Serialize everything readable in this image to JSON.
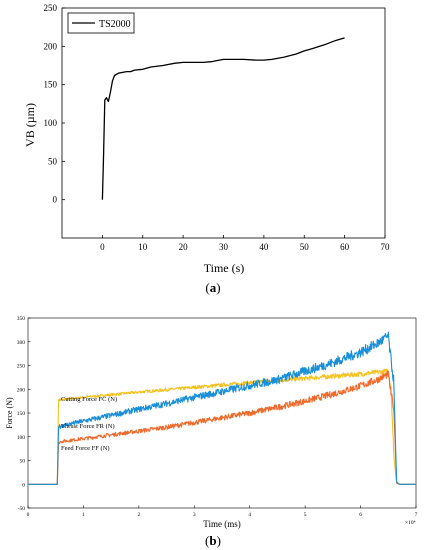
{
  "figure": {
    "panel_a_caption": {
      "open": "(",
      "letter": "a",
      "close": ")"
    },
    "panel_b_caption": {
      "open": "(",
      "letter": "b",
      "close": ")"
    }
  },
  "chart_data": [
    {
      "type": "line",
      "xlabel": "Time (s)",
      "ylabel": "VB (µm)",
      "xlim": [
        -10,
        70
      ],
      "ylim": [
        -50,
        250
      ],
      "xticks": [
        0,
        10,
        20,
        30,
        40,
        50,
        60,
        70
      ],
      "yticks": [
        0,
        50,
        100,
        150,
        200,
        250
      ],
      "grid": false,
      "legend": {
        "position": "top-left",
        "boxed": true
      },
      "series": [
        {
          "name": "TS2000",
          "color": "#000000",
          "x": [
            0,
            0.3,
            0.6,
            1,
            1.5,
            2,
            2.5,
            3,
            4,
            5,
            6,
            7,
            8,
            10,
            12,
            15,
            18,
            20,
            22,
            25,
            27,
            28,
            30,
            32,
            35,
            38,
            40,
            42,
            45,
            48,
            50,
            52,
            55,
            57,
            58,
            60
          ],
          "y": [
            0,
            60,
            130,
            133,
            128,
            140,
            155,
            162,
            165,
            166,
            167,
            167,
            169,
            170,
            173,
            175,
            178,
            179,
            179,
            179,
            180,
            181,
            183,
            183,
            183,
            182,
            182,
            183,
            186,
            190,
            194,
            197,
            202,
            206,
            208,
            211
          ]
        }
      ]
    },
    {
      "type": "line",
      "xlabel": "Time (ms)",
      "ylabel": "Force (N)",
      "x_exponent": "×10⁴",
      "xlim": [
        0,
        7
      ],
      "ylim": [
        -50,
        350
      ],
      "xticks": [
        0,
        1,
        2,
        3,
        4,
        5,
        6,
        7
      ],
      "yticks": [
        -50,
        0,
        50,
        100,
        150,
        200,
        250,
        300,
        350
      ],
      "grid": false,
      "series": [
        {
          "name": "Cutting Force FC (N)",
          "color": "#f5c11e",
          "x": [
            0,
            0.53,
            0.55,
            0.6,
            1,
            2,
            3,
            4,
            5,
            6,
            6.5,
            6.55,
            6.6,
            6.65,
            6.7,
            7
          ],
          "y": [
            0,
            0,
            178,
            178,
            183,
            194,
            204,
            214,
            223,
            232,
            238,
            200,
            60,
            2,
            0,
            0
          ]
        },
        {
          "name": "Thrust Force FR (N)",
          "color": "#1a8fd8",
          "x": [
            0,
            0.53,
            0.55,
            0.6,
            1,
            1.5,
            2,
            2.5,
            3,
            3.5,
            4,
            4.5,
            5,
            5.5,
            6,
            6.3,
            6.5,
            6.55,
            6.6,
            6.65,
            6.7,
            7
          ],
          "y": [
            0,
            0,
            120,
            123,
            133,
            145,
            158,
            170,
            183,
            195,
            208,
            220,
            238,
            256,
            278,
            296,
            312,
            260,
            215,
            5,
            0,
            0
          ]
        },
        {
          "name": "Feed Force FF (N)",
          "color": "#ef6a2b",
          "x": [
            0,
            0.53,
            0.55,
            0.6,
            1,
            1.5,
            2,
            2.5,
            3,
            3.5,
            4,
            4.5,
            5,
            5.5,
            6,
            6.3,
            6.5,
            6.55,
            6.6,
            6.65,
            6.7,
            7
          ],
          "y": [
            0,
            0,
            88,
            90,
            96,
            104,
            112,
            120,
            130,
            140,
            150,
            162,
            175,
            190,
            207,
            220,
            232,
            190,
            160,
            3,
            0,
            0
          ]
        }
      ]
    }
  ]
}
